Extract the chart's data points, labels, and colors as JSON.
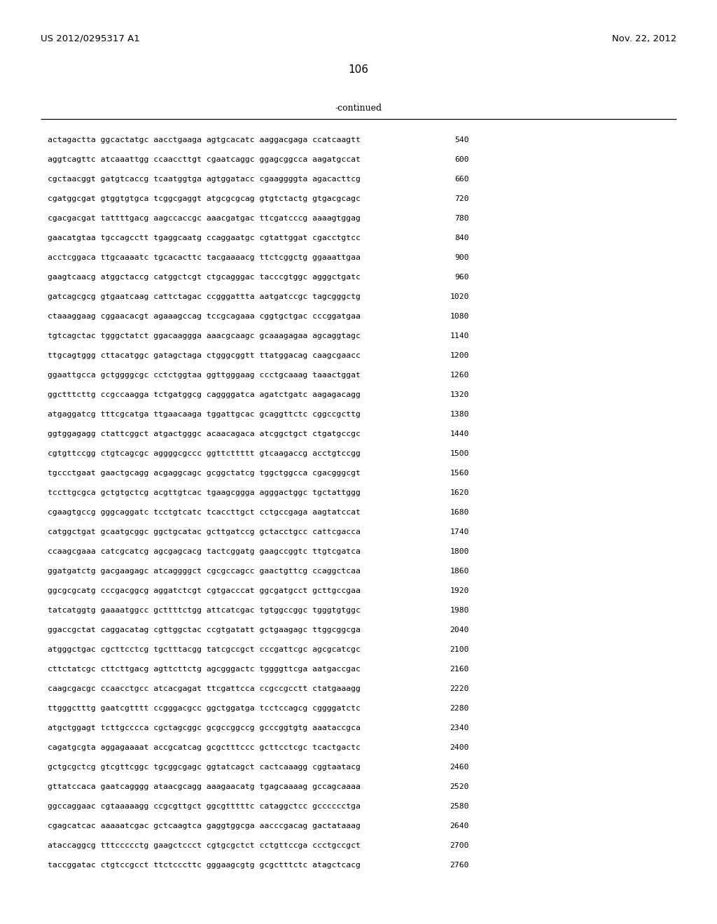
{
  "header_left": "US 2012/0295317 A1",
  "header_right": "Nov. 22, 2012",
  "page_number": "106",
  "continued_label": "-continued",
  "background_color": "#ffffff",
  "text_color": "#000000",
  "font_size_header": 9.5,
  "font_size_page": 11.0,
  "font_size_seq": 8.2,
  "sequence_lines": [
    [
      "actagactta ggcactatgc aacctgaaga agtgcacatc aaggacgaga ccatcaagtt",
      "540"
    ],
    [
      "aggtcagttc atcaaattgg ccaaccttgt cgaatcaggc ggagcggcca aagatgccat",
      "600"
    ],
    [
      "cgctaacggt gatgtcaccg tcaatggtga agtggatacc cgaaggggta agacacttcg",
      "660"
    ],
    [
      "cgatggcgat gtggtgtgca tcggcgaggt atgcgcgcag gtgtctactg gtgacgcagc",
      "720"
    ],
    [
      "cgacgacgat tattttgacg aagccaccgc aaacgatgac ttcgatcccg aaaagtggag",
      "780"
    ],
    [
      "gaacatgtaa tgccagcctt tgaggcaatg ccaggaatgc cgtattggat cgacctgtcc",
      "840"
    ],
    [
      "acctcggaca ttgcaaaatc tgcacacttc tacgaaaacg ttctcggctg ggaaattgaa",
      "900"
    ],
    [
      "gaagtcaacg atggctaccg catggctcgt ctgcagggac tacccgtggc agggctgatc",
      "960"
    ],
    [
      "gatcagcgcg gtgaatcaag cattctagac ccgggattta aatgatccgc tagcgggctg",
      "1020"
    ],
    [
      "ctaaaggaag cggaacacgt agaaagccag tccgcagaaa cggtgctgac cccggatgaa",
      "1080"
    ],
    [
      "tgtcagctac tgggctatct ggacaaggga aaacgcaagc gcaaagagaa agcaggtagc",
      "1140"
    ],
    [
      "ttgcagtggg cttacatggc gatagctaga ctgggcggtt ttatggacag caagcgaacc",
      "1200"
    ],
    [
      "ggaattgcca gctggggcgc cctctggtaa ggttgggaag ccctgcaaag taaactggat",
      "1260"
    ],
    [
      "ggctttcttg ccgccaagga tctgatggcg caggggatca agatctgatc aagagacagg",
      "1320"
    ],
    [
      "atgaggatcg tttcgcatga ttgaacaaga tggattgcac gcaggttctc cggccgcttg",
      "1380"
    ],
    [
      "ggtggagagg ctattcggct atgactgggc acaacagaca atcggctgct ctgatgccgc",
      "1440"
    ],
    [
      "cgtgttccgg ctgtcagcgc aggggcgccc ggttcttttt gtcaagaccg acctgtccgg",
      "1500"
    ],
    [
      "tgccctgaat gaactgcagg acgaggcagc gcggctatcg tggctggcca cgacgggcgt",
      "1560"
    ],
    [
      "tccttgcgca gctgtgctcg acgttgtcac tgaagcggga agggactggc tgctattggg",
      "1620"
    ],
    [
      "cgaagtgccg gggcaggatc tcctgtcatc tcaccttgct cctgccgaga aagtatccat",
      "1680"
    ],
    [
      "catggctgat gcaatgcggc ggctgcatac gcttgatccg gctacctgcc cattcgacca",
      "1740"
    ],
    [
      "ccaagcgaaa catcgcatcg agcgagcacg tactcggatg gaagccggtc ttgtcgatca",
      "1800"
    ],
    [
      "ggatgatctg gacgaagagc atcaggggct cgcgccagcc gaactgttcg ccaggctcaa",
      "1860"
    ],
    [
      "ggcgcgcatg cccgacggcg aggatctcgt cgtgacccat ggcgatgcct gcttgccgaa",
      "1920"
    ],
    [
      "tatcatggtg gaaaatggcc gcttttctgg attcatcgac tgtggccggc tgggtgtggc",
      "1980"
    ],
    [
      "ggaccgctat caggacatag cgttggctac ccgtgatatt gctgaagagc ttggcggcga",
      "2040"
    ],
    [
      "atgggctgac cgcttcctcg tgctttacgg tatcgccgct cccgattcgc agcgcatcgc",
      "2100"
    ],
    [
      "cttctatcgc cttcttgacg agttcttctg agcgggactc tggggttcga aatgaccgac",
      "2160"
    ],
    [
      "caagcgacgc ccaacctgcc atcacgagat ttcgattcca ccgccgcctt ctatgaaagg",
      "2220"
    ],
    [
      "ttgggctttg gaatcgtttt ccgggacgcc ggctggatga tcctccagcg cggggatctc",
      "2280"
    ],
    [
      "atgctggagt tcttgcccca cgctagcggc gcgccggccg gcccggtgtg aaataccgca",
      "2340"
    ],
    [
      "cagatgcgta aggagaaaat accgcatcag gcgctttccc gcttcctcgc tcactgactc",
      "2400"
    ],
    [
      "gctgcgctcg gtcgttcggc tgcggcgagc ggtatcagct cactcaaagg cggtaatacg",
      "2460"
    ],
    [
      "gttatccaca gaatcagggg ataacgcagg aaagaacatg tgagcaaaag gccagcaaaa",
      "2520"
    ],
    [
      "ggccaggaac cgtaaaaagg ccgcgttgct ggcgtttttc cataggctcc gcccccctga",
      "2580"
    ],
    [
      "cgagcatcac aaaaatcgac gctcaagtca gaggtggcga aacccgacag gactataaag",
      "2640"
    ],
    [
      "ataccaggcg tttccccctg gaagctccct cgtgcgctct cctgttccga ccctgccgct",
      "2700"
    ],
    [
      "taccggatac ctgtccgcct ttctcccttc gggaagcgtg gcgctttctc atagctcacg",
      "2760"
    ]
  ]
}
